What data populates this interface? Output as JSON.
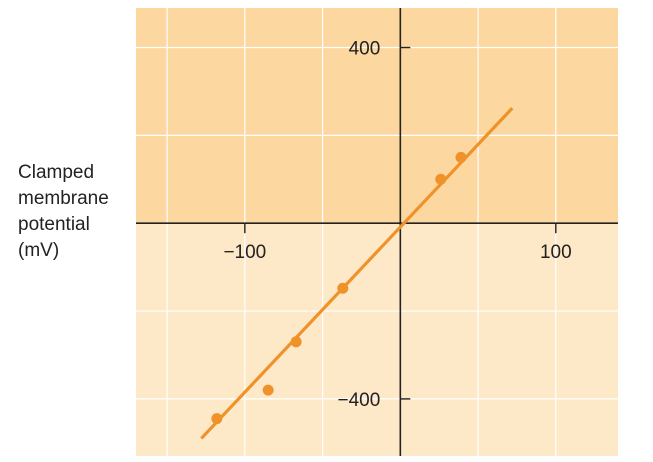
{
  "chart_data": {
    "type": "scatter",
    "ylabel_lines": [
      "Clamped",
      "membrane",
      "potential",
      "(mV)"
    ],
    "xlim": [
      -170,
      140
    ],
    "ylim": [
      -530,
      490
    ],
    "x_ticks": [
      {
        "value": -100,
        "label": "−100"
      },
      {
        "value": 100,
        "label": "100"
      }
    ],
    "y_ticks": [
      {
        "value": 400,
        "label": "400"
      },
      {
        "value": -400,
        "label": "−400"
      }
    ],
    "grid_x": [
      -150,
      -100,
      -50,
      0,
      50,
      100,
      150
    ],
    "grid_y": [
      400,
      200,
      0,
      -200,
      -400
    ],
    "points": [
      {
        "x": -118,
        "y": -445
      },
      {
        "x": -85,
        "y": -380
      },
      {
        "x": -67,
        "y": -270
      },
      {
        "x": -37,
        "y": -148
      },
      {
        "x": 26,
        "y": 100
      },
      {
        "x": 39,
        "y": 150
      }
    ],
    "fit_line": {
      "x": [
        -128,
        72
      ],
      "y": [
        -490,
        262
      ]
    },
    "grid": true,
    "colors": {
      "positive_region": "#fcd79f",
      "negative_region": "#fde9c8",
      "grid_line": "#ffffff",
      "axis": "#222222",
      "series": "#f0922a"
    }
  }
}
